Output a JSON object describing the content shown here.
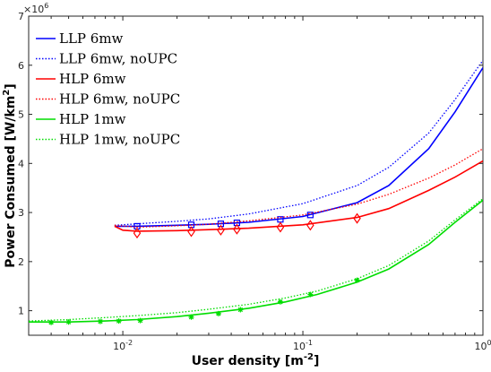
{
  "chart_data": {
    "type": "line",
    "xscale": "log",
    "xlim": [
      0.003,
      1.0
    ],
    "ylim": [
      0.5,
      7.0
    ],
    "y_multiplier_label": "×10",
    "y_multiplier_exp": "6",
    "xlabel": "User density [m",
    "xlabel_exp": "-2",
    "xlabel_end": "]",
    "ylabel": "Power Consumed [W/km",
    "ylabel_exp": "2",
    "ylabel_end": "]",
    "x_ticks": [
      {
        "value": 0.01,
        "base": "10",
        "exp": "-2"
      },
      {
        "value": 0.1,
        "base": "10",
        "exp": "-1"
      },
      {
        "value": 1.0,
        "base": "10",
        "exp": "0"
      }
    ],
    "y_ticks": [
      1,
      2,
      3,
      4,
      5,
      6,
      7
    ],
    "legend_position": "top-left",
    "series": [
      {
        "name": "LLP 6mw",
        "color": "#0000ff",
        "style": "solid",
        "marker": "square",
        "x": [
          0.009,
          0.012,
          0.02,
          0.03,
          0.05,
          0.1,
          0.2,
          0.3,
          0.5,
          0.7,
          1.0
        ],
        "y": [
          2.72,
          2.72,
          2.74,
          2.76,
          2.8,
          2.92,
          3.2,
          3.55,
          4.3,
          5.05,
          5.95
        ],
        "marker_x": [
          0.012,
          0.024,
          0.035,
          0.043,
          0.075,
          0.11
        ],
        "marker_y": [
          2.72,
          2.75,
          2.77,
          2.79,
          2.86,
          2.95
        ]
      },
      {
        "name": "LLP 6mw, noUPC",
        "color": "#0000ff",
        "style": "dotted",
        "marker": "",
        "x": [
          0.009,
          0.012,
          0.02,
          0.03,
          0.05,
          0.1,
          0.2,
          0.3,
          0.5,
          0.7,
          1.0
        ],
        "y": [
          2.74,
          2.77,
          2.82,
          2.87,
          2.97,
          3.18,
          3.55,
          3.92,
          4.62,
          5.3,
          6.1
        ],
        "marker_x": [],
        "marker_y": []
      },
      {
        "name": "HLP 6mw",
        "color": "#ff0000",
        "style": "solid",
        "marker": "diamond",
        "x": [
          0.009,
          0.01,
          0.012,
          0.02,
          0.03,
          0.05,
          0.1,
          0.2,
          0.3,
          0.5,
          0.7,
          1.0
        ],
        "y": [
          2.72,
          2.64,
          2.62,
          2.63,
          2.65,
          2.68,
          2.75,
          2.9,
          3.08,
          3.45,
          3.72,
          4.05
        ],
        "marker_x": [
          0.012,
          0.024,
          0.035,
          0.043,
          0.075,
          0.11,
          0.2
        ],
        "marker_y": [
          2.58,
          2.61,
          2.64,
          2.66,
          2.7,
          2.74,
          2.88
        ]
      },
      {
        "name": "HLP 6mw, noUPC",
        "color": "#ff0000",
        "style": "dotted",
        "marker": "",
        "x": [
          0.009,
          0.012,
          0.02,
          0.03,
          0.05,
          0.1,
          0.2,
          0.3,
          0.5,
          0.7,
          1.0
        ],
        "y": [
          2.74,
          2.7,
          2.73,
          2.76,
          2.83,
          2.95,
          3.17,
          3.37,
          3.7,
          3.97,
          4.3
        ],
        "marker_x": [],
        "marker_y": []
      },
      {
        "name": "HLP 1mw",
        "color": "#00dd00",
        "style": "solid",
        "marker": "star",
        "x": [
          0.003,
          0.005,
          0.008,
          0.012,
          0.02,
          0.03,
          0.05,
          0.08,
          0.12,
          0.2,
          0.3,
          0.5,
          0.7,
          1.0
        ],
        "y": [
          0.77,
          0.77,
          0.79,
          0.82,
          0.88,
          0.95,
          1.05,
          1.18,
          1.33,
          1.58,
          1.85,
          2.35,
          2.8,
          3.25
        ],
        "marker_x": [
          0.004,
          0.005,
          0.0075,
          0.0095,
          0.0125,
          0.024,
          0.034,
          0.045,
          0.075,
          0.11,
          0.2
        ],
        "marker_y": [
          0.76,
          0.77,
          0.78,
          0.79,
          0.8,
          0.87,
          0.94,
          1.02,
          1.18,
          1.33,
          1.62
        ]
      },
      {
        "name": "HLP 1mw, noUPC",
        "color": "#00dd00",
        "style": "dotted",
        "marker": "",
        "x": [
          0.003,
          0.005,
          0.008,
          0.012,
          0.02,
          0.03,
          0.05,
          0.08,
          0.12,
          0.2,
          0.3,
          0.5,
          0.7,
          1.0
        ],
        "y": [
          0.79,
          0.82,
          0.86,
          0.9,
          0.96,
          1.03,
          1.13,
          1.26,
          1.4,
          1.65,
          1.92,
          2.42,
          2.85,
          3.28
        ],
        "marker_x": [],
        "marker_y": []
      }
    ]
  }
}
